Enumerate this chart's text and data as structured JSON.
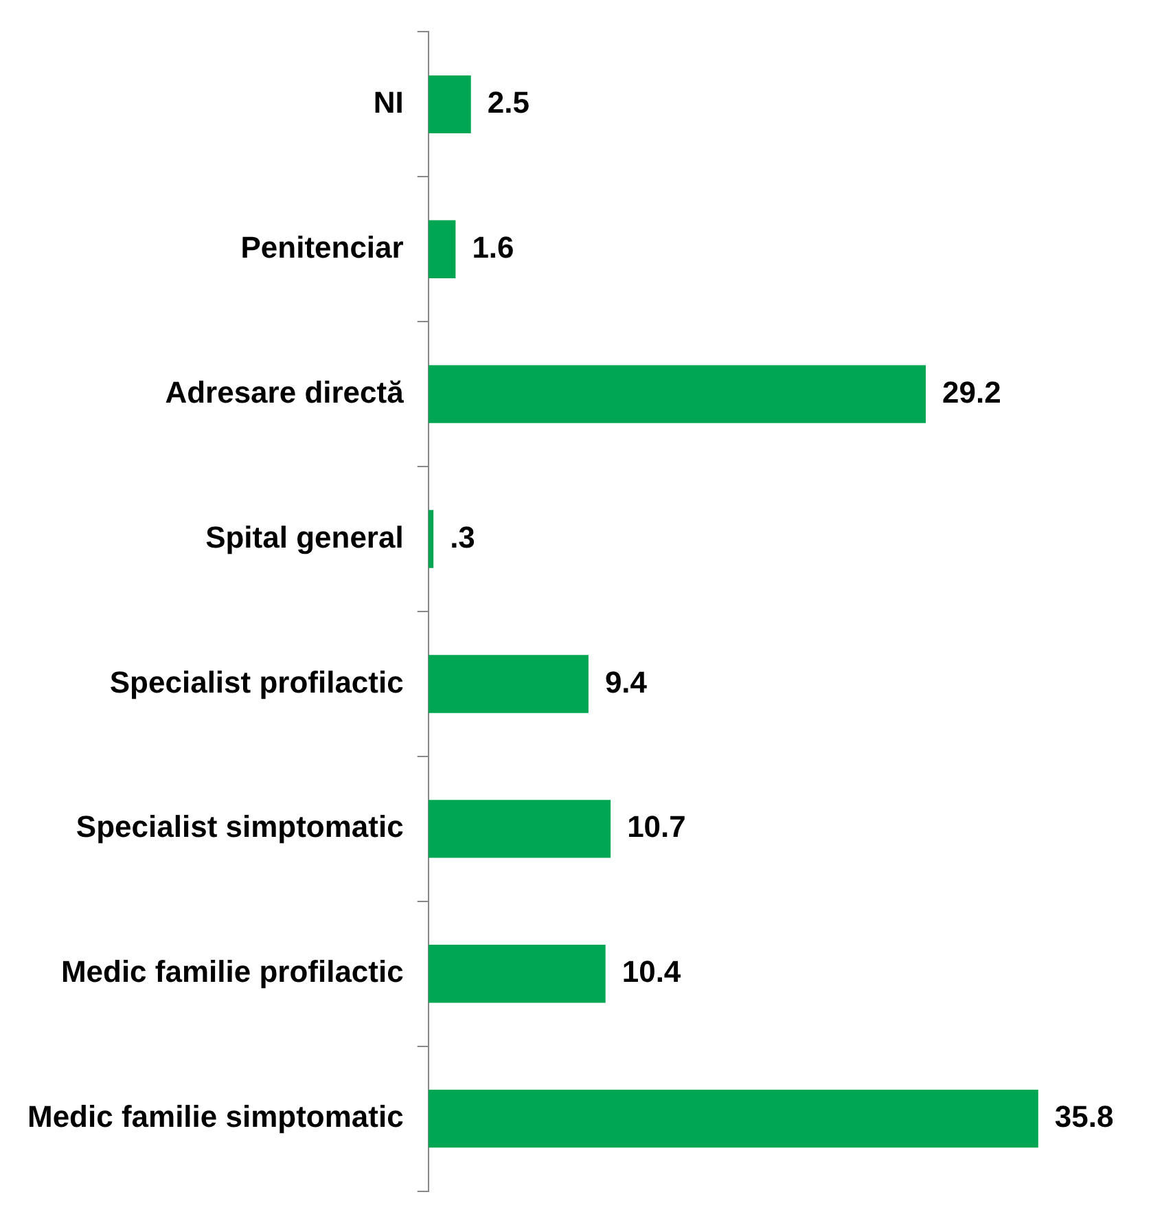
{
  "chart_data": {
    "type": "bar",
    "orientation": "horizontal",
    "categories": [
      "NI",
      "Penitenciar",
      "Adresare directă",
      "Spital general",
      "Specialist profilactic",
      "Specialist simptomatic",
      "Medic familie profilactic",
      "Medic familie simptomatic"
    ],
    "values": [
      2.5,
      1.6,
      29.2,
      0.3,
      9.4,
      10.7,
      10.4,
      35.8
    ],
    "value_labels": [
      "2.5",
      "1.6",
      "29.2",
      ".3",
      "9.4",
      "10.7",
      "10.4",
      "35.8"
    ],
    "color": "#00a651",
    "legend": false,
    "tick_labels": "y"
  }
}
